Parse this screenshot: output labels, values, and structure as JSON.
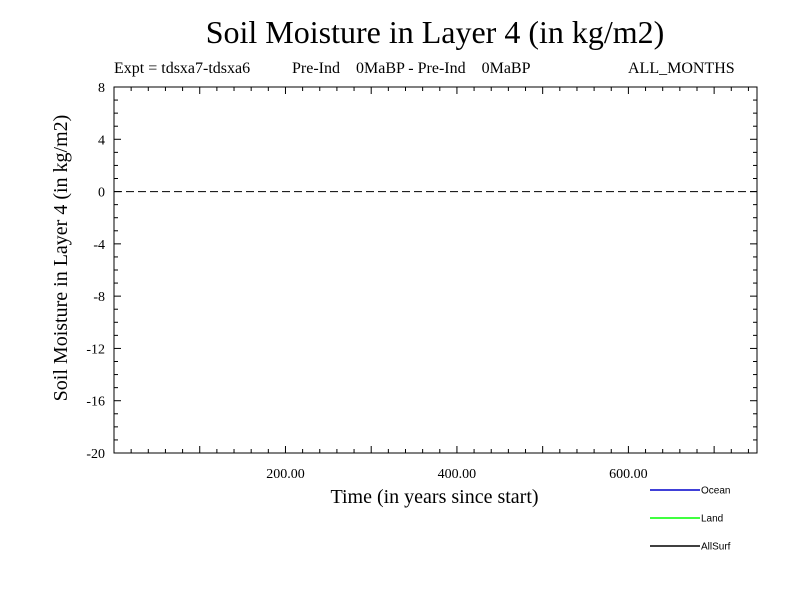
{
  "chart_data": {
    "type": "line",
    "title": "Soil Moisture in Layer 4 (in kg/m2)",
    "subtitle_left": "Expt = tdsxa7-tdsxa6",
    "subtitle_mid": "Pre-Ind    0MaBP - Pre-Ind    0MaBP",
    "subtitle_right": "ALL_MONTHS",
    "xlabel": "Time (in years since start)",
    "ylabel": "Soil Moisture in Layer 4 (in kg/m2)",
    "xlim": [
      0,
      750
    ],
    "ylim": [
      -20,
      8
    ],
    "x_ticks": [
      200,
      400,
      600
    ],
    "x_tick_labels": [
      "200.00",
      "400.00",
      "600.00"
    ],
    "y_ticks": [
      8,
      4,
      0,
      -4,
      -8,
      -12,
      -16,
      -20
    ],
    "y_tick_labels": [
      "8",
      "4",
      "0",
      "-4",
      "-8",
      "-12",
      "-16",
      "-20"
    ],
    "reference_line_y": 0,
    "colors": {
      "Ocean": "#0000cc",
      "Land": "#00ff00",
      "AllSurf": "#000000"
    },
    "series": [
      {
        "name": "Ocean",
        "color": "#0000cc",
        "x": [],
        "values": []
      },
      {
        "name": "Land",
        "color": "#00ff00",
        "x": [],
        "values": []
      },
      {
        "name": "AllSurf",
        "color": "#000000",
        "x": [],
        "values": []
      }
    ],
    "legend": [
      "Ocean",
      "Land",
      "AllSurf"
    ]
  }
}
